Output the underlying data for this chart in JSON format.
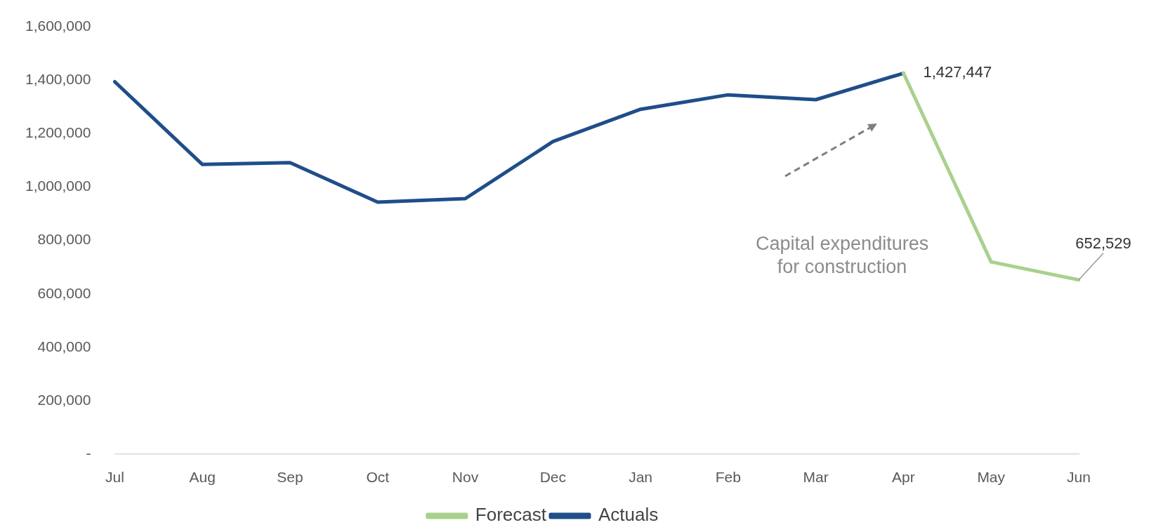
{
  "chart_data": {
    "type": "line",
    "categories": [
      "Jul",
      "Aug",
      "Sep",
      "Oct",
      "Nov",
      "Dec",
      "Jan",
      "Feb",
      "Mar",
      "Apr",
      "May",
      "Jun"
    ],
    "series": [
      {
        "name": "Forecast",
        "color": "#a9d18e",
        "values": [
          null,
          null,
          null,
          null,
          null,
          null,
          null,
          null,
          null,
          1427447,
          720000,
          652529
        ],
        "value_labels": [
          null,
          null,
          null,
          null,
          null,
          null,
          null,
          null,
          null,
          "1,427,447",
          null,
          "652,529"
        ]
      },
      {
        "name": "Actuals",
        "color": "#1f4e89",
        "values": [
          1395000,
          1085000,
          1092000,
          944000,
          957000,
          1171000,
          1292000,
          1346000,
          1328000,
          1427000,
          null,
          null
        ]
      }
    ],
    "ylim": [
      0,
      1600000
    ],
    "yticks": [
      {
        "value": 0,
        "label": "-"
      },
      {
        "value": 200000,
        "label": "200,000"
      },
      {
        "value": 400000,
        "label": "400,000"
      },
      {
        "value": 600000,
        "label": "600,000"
      },
      {
        "value": 800000,
        "label": "800,000"
      },
      {
        "value": 1000000,
        "label": "1,000,000"
      },
      {
        "value": 1200000,
        "label": "1,200,000"
      },
      {
        "value": 1400000,
        "label": "1,400,000"
      },
      {
        "value": 1600000,
        "label": "1,600,000"
      }
    ],
    "grid": false,
    "legend": "bottom",
    "marker": "none",
    "line_style": "solid",
    "annotations": [
      "Capital expenditures for construction"
    ]
  }
}
